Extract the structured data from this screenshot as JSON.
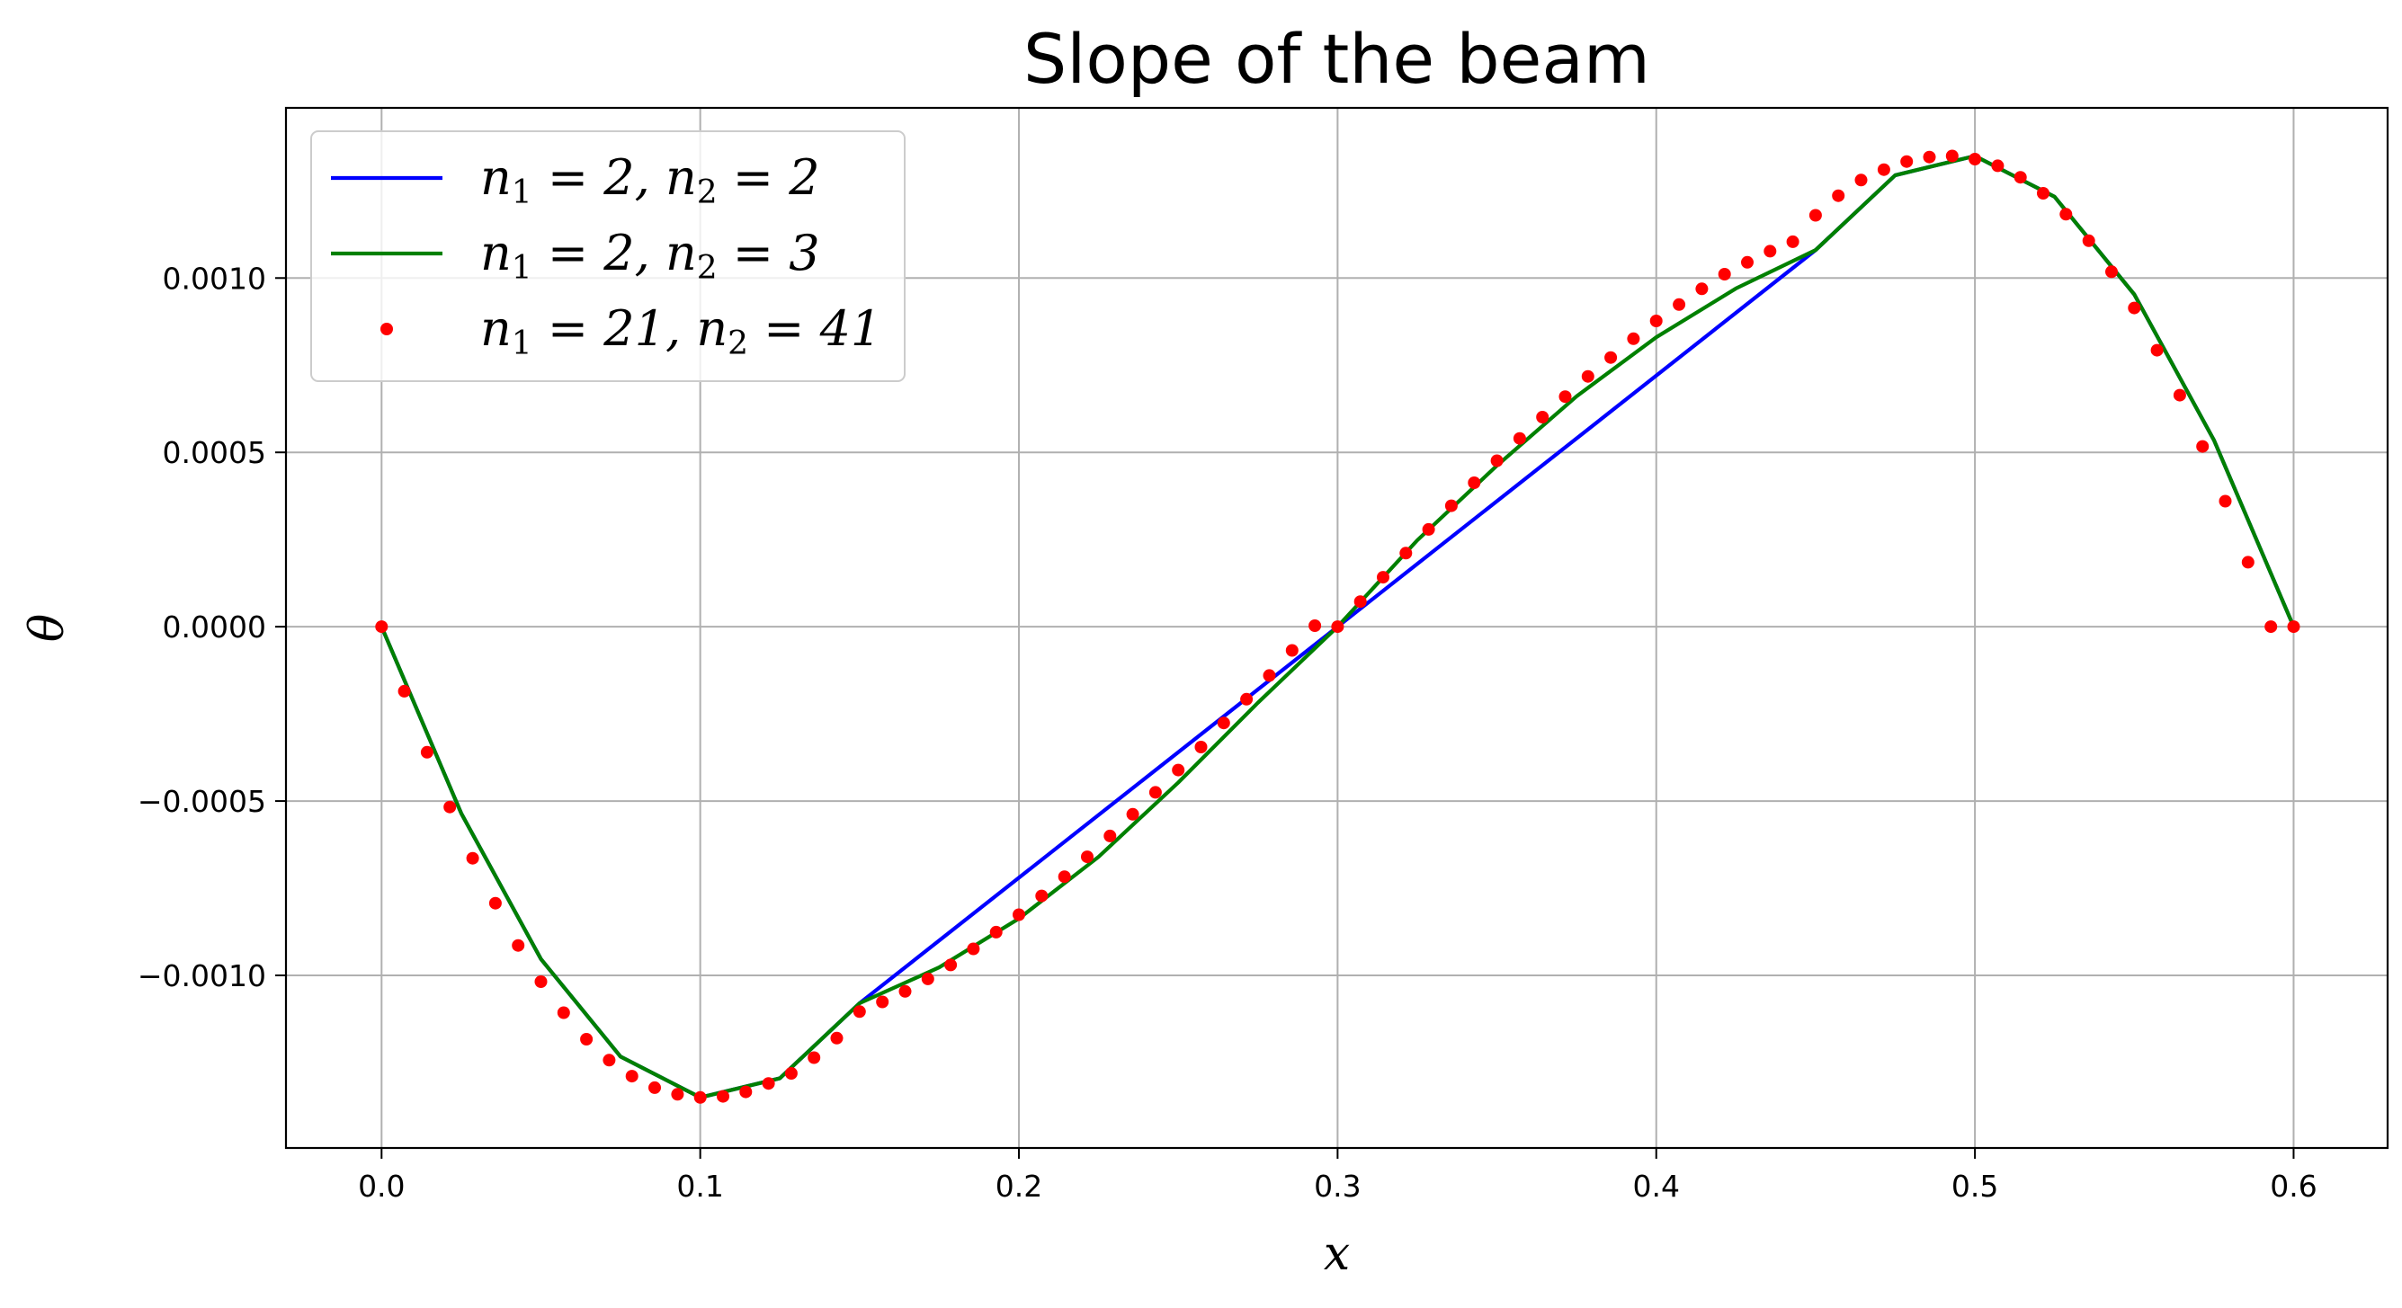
{
  "chart_data": {
    "type": "line",
    "title": "Slope of the beam",
    "xlabel": "x",
    "ylabel": "θ",
    "xlim": [
      -0.03,
      0.6295
    ],
    "ylim": [
      -0.001495,
      0.001488
    ],
    "xticks": [
      0.0,
      0.1,
      0.2,
      0.3,
      0.4,
      0.5,
      0.6
    ],
    "xtick_labels": [
      "0.0",
      "0.1",
      "0.2",
      "0.3",
      "0.4",
      "0.5",
      "0.6"
    ],
    "yticks": [
      0.001,
      0.0005,
      0.0,
      -0.0005,
      -0.001
    ],
    "ytick_labels": [
      "0.0010",
      "0.0005",
      "0.0000",
      "−0.0005",
      "−0.0010"
    ],
    "grid": true,
    "legend_position": "upper-left",
    "series": [
      {
        "name": "n_1 = 2, n_2 = 2",
        "legend_main": [
          "n",
          "1",
          " = 2, ",
          "n",
          "2",
          " = 2"
        ],
        "style": "line",
        "color": "#0000ff",
        "x": [
          0.0,
          0.025,
          0.05,
          0.075,
          0.1,
          0.125,
          0.15,
          0.3,
          0.45,
          0.475,
          0.5,
          0.525,
          0.55,
          0.575,
          0.6
        ],
        "y": [
          0.0,
          -0.000535,
          -0.000953,
          -0.001233,
          -0.00135,
          -0.001295,
          -0.00108,
          0.0,
          0.00108,
          0.001295,
          0.00135,
          0.001233,
          0.000953,
          0.000535,
          0.0
        ]
      },
      {
        "name": "n_1 = 2, n_2 = 3",
        "legend_main": [
          "n",
          "1",
          " = 2, ",
          "n",
          "2",
          " = 3"
        ],
        "style": "line",
        "color": "#008000",
        "x": [
          0.0,
          0.025,
          0.05,
          0.075,
          0.1,
          0.125,
          0.15,
          0.175,
          0.2,
          0.225,
          0.25,
          0.275,
          0.3,
          0.325,
          0.35,
          0.375,
          0.4,
          0.425,
          0.45,
          0.475,
          0.5,
          0.525,
          0.55,
          0.575,
          0.6
        ],
        "y": [
          0.0,
          -0.000535,
          -0.000953,
          -0.001233,
          -0.00135,
          -0.001295,
          -0.00108,
          -0.000977,
          -0.000837,
          -0.00066,
          -0.000447,
          -0.000218,
          0.0,
          0.000248,
          0.000462,
          0.000661,
          0.00083,
          0.00097,
          0.00108,
          0.001295,
          0.00135,
          0.001233,
          0.000953,
          0.000535,
          0.0
        ]
      },
      {
        "name": "n_1 = 21, n_2 = 41",
        "legend_main": [
          "n",
          "1",
          " = 21, ",
          "n",
          "2",
          " = 41"
        ],
        "style": "markers",
        "color": "#ff0000",
        "x": [
          0.0,
          0.007143,
          0.014286,
          0.021429,
          0.028571,
          0.035714,
          0.042857,
          0.05,
          0.057143,
          0.064286,
          0.071429,
          0.078571,
          0.085714,
          0.092857,
          0.1,
          0.107143,
          0.114286,
          0.121429,
          0.128571,
          0.135714,
          0.142857,
          0.15,
          0.157143,
          0.164286,
          0.171429,
          0.178571,
          0.185714,
          0.192857,
          0.2,
          0.207143,
          0.214286,
          0.221429,
          0.228571,
          0.235714,
          0.242857,
          0.25,
          0.257143,
          0.264286,
          0.271429,
          0.278571,
          0.285714,
          0.292857,
          0.3,
          0.307143,
          0.314286,
          0.321429,
          0.328571,
          0.335714,
          0.342857,
          0.35,
          0.357143,
          0.364286,
          0.371429,
          0.378571,
          0.385714,
          0.392857,
          0.4,
          0.407143,
          0.414286,
          0.421429,
          0.428571,
          0.435714,
          0.442857,
          0.45,
          0.457143,
          0.464286,
          0.471429,
          0.478571,
          0.485714,
          0.492857,
          0.5,
          0.507143,
          0.514286,
          0.521429,
          0.528571,
          0.535714,
          0.542857,
          0.55,
          0.557143,
          0.564286,
          0.571429,
          0.578571,
          0.585714,
          0.592857,
          0.6
        ],
        "y": [
          0.0,
          -0.000185,
          -0.00036,
          -0.000517,
          -0.000664,
          -0.000793,
          -0.000914,
          -0.001018,
          -0.001107,
          -0.001183,
          -0.001243,
          -0.001289,
          -0.001322,
          -0.001341,
          -0.00135,
          -0.001347,
          -0.001334,
          -0.00131,
          -0.001281,
          -0.001236,
          -0.00118,
          -0.001104,
          -0.001076,
          -0.001046,
          -0.00101,
          -0.00097,
          -0.000924,
          -0.000876,
          -0.000826,
          -0.000772,
          -0.000717,
          -0.00066,
          -0.0006,
          -0.000538,
          -0.000475,
          -0.000411,
          -0.000345,
          -0.000276,
          -0.000208,
          -0.00014,
          -6.8e-05,
          3e-06,
          0.0,
          7.2e-05,
          0.000142,
          0.000211,
          0.000279,
          0.000347,
          0.000413,
          0.000476,
          0.00054,
          0.000601,
          0.00066,
          0.000718,
          0.000772,
          0.000826,
          0.000877,
          0.000924,
          0.000969,
          0.001011,
          0.001045,
          0.001077,
          0.001104,
          0.00118,
          0.001236,
          0.001281,
          0.001311,
          0.001334,
          0.001347,
          0.00135,
          0.001341,
          0.001322,
          0.001289,
          0.001243,
          0.001183,
          0.001107,
          0.001018,
          0.000914,
          0.000793,
          0.000664,
          0.000517,
          0.00036,
          0.000185,
          0.0,
          0.0
        ]
      }
    ]
  }
}
